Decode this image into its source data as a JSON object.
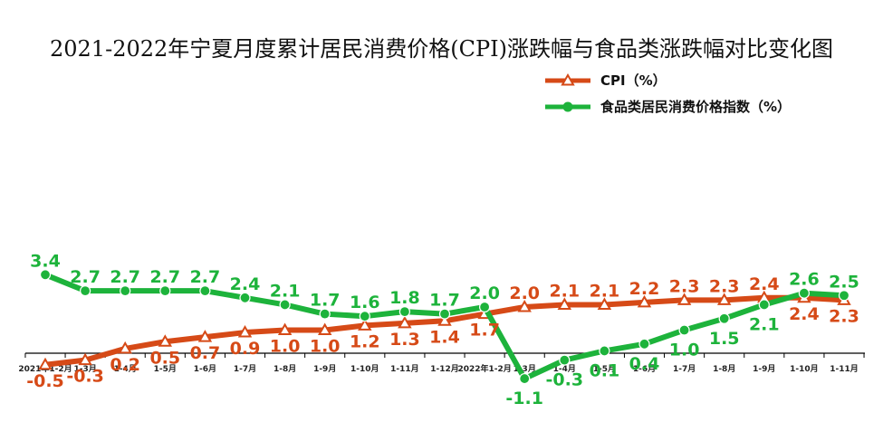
{
  "chart_data": {
    "type": "line",
    "title": "2021-2022年宁夏月度累计居民消费价格(CPI)涨跌幅与食品类涨跌幅对比变化图",
    "xlabel": "",
    "ylabel": "",
    "categories": [
      "2021年1-2月",
      "1-3月",
      "1-4月",
      "1-5月",
      "1-6月",
      "1-7月",
      "1-8月",
      "1-9月",
      "1-10月",
      "1-11月",
      "1-12月",
      "2022年1-2月",
      "1-3月",
      "1-4月",
      "1-5月",
      "1-6月",
      "1-7月",
      "1-8月",
      "1-9月",
      "1-10月",
      "1-11月"
    ],
    "series": [
      {
        "name": "CPI（%）",
        "color": "#d64a17",
        "marker": "triangle",
        "values": [
          -0.5,
          -0.3,
          0.2,
          0.5,
          0.7,
          0.9,
          1.0,
          1.0,
          1.2,
          1.3,
          1.4,
          1.7,
          2.0,
          2.1,
          2.1,
          2.2,
          2.3,
          2.3,
          2.4,
          2.4,
          2.3
        ]
      },
      {
        "name": "食品类居民消费价格指数（%）",
        "color": "#1db33b",
        "marker": "circle",
        "values": [
          3.4,
          2.7,
          2.7,
          2.7,
          2.7,
          2.4,
          2.1,
          1.7,
          1.6,
          1.8,
          1.7,
          2.0,
          -1.1,
          -0.3,
          0.1,
          0.4,
          1.0,
          1.5,
          2.1,
          2.6,
          2.5
        ]
      }
    ],
    "legend_position": "top-right",
    "grid": false
  }
}
